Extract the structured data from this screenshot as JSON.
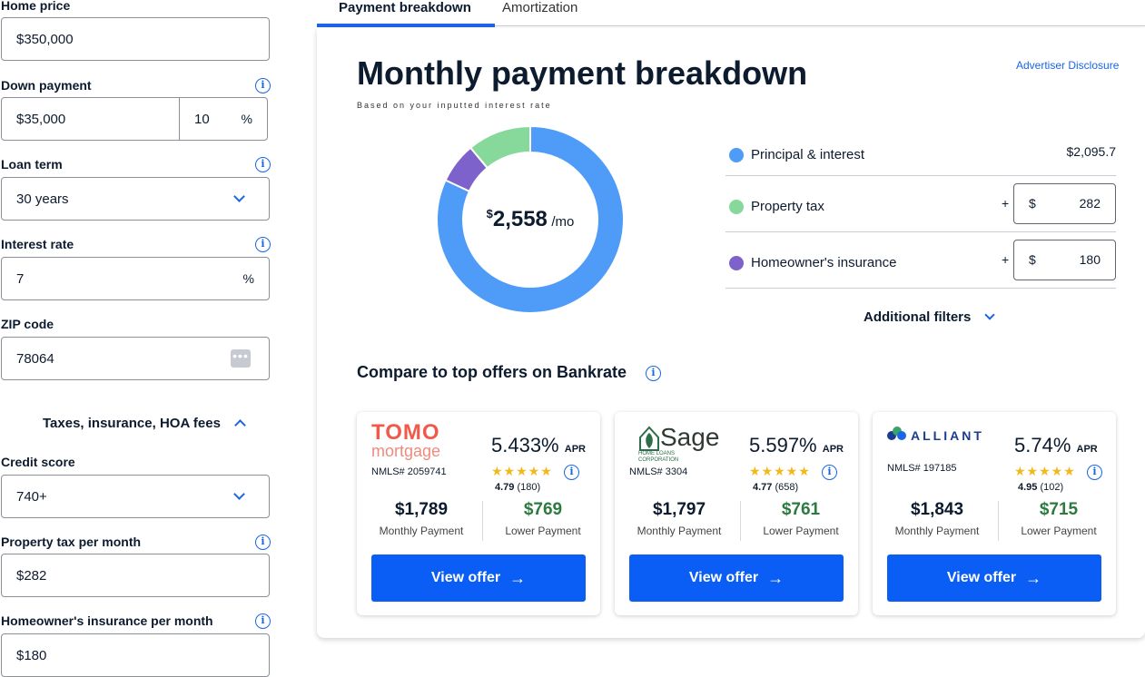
{
  "form": {
    "home_price_label": "Home price",
    "home_price_value": "$350,000",
    "down_payment_label": "Down payment",
    "down_payment_value": "$35,000",
    "down_payment_percent": "10",
    "percent_symbol": "%",
    "loan_term_label": "Loan term",
    "loan_term_value": "30 years",
    "interest_rate_label": "Interest rate",
    "interest_rate_value": "7",
    "zip_label": "ZIP code",
    "zip_value": "78064",
    "taxes_toggle_label": "Taxes, insurance, HOA fees",
    "credit_score_label": "Credit score",
    "credit_score_value": "740+",
    "property_tax_label": "Property tax per month",
    "property_tax_value": "$282",
    "insurance_label": "Homeowner's insurance per month",
    "insurance_value": "$180"
  },
  "tabs": [
    {
      "label": "Payment breakdown",
      "active": true
    },
    {
      "label": "Amortization",
      "active": false
    }
  ],
  "breakdown": {
    "title": "Monthly payment breakdown",
    "subtitle": "Based on your inputted interest rate",
    "advertiser_link": "Advertiser Disclosure",
    "total_currency": "$",
    "total_amount": "2,558",
    "total_period": "/mo",
    "donut": [
      {
        "name": "Principal & interest",
        "value": 2095.7,
        "color": "#4e9bf8"
      },
      {
        "name": "Homeowner's insurance",
        "value": 180,
        "color": "#7e62cc"
      },
      {
        "name": "Property tax",
        "value": 282,
        "color": "#86d99a"
      }
    ],
    "legend": {
      "principal_label": "Principal & interest",
      "principal_value": "$2,095.7",
      "tax_label": "Property tax",
      "tax_value": "282",
      "insurance_label": "Homeowner's insurance",
      "insurance_value": "180",
      "plus": "+",
      "dollar": "$"
    },
    "additional_filters": "Additional filters",
    "compare_title": "Compare to top offers on Bankrate"
  },
  "offers": [
    {
      "lender_line1": "TOMO",
      "lender_line2": "mortgage",
      "nmls": "NMLS# 2059741",
      "apr": "5.433%",
      "apr_label": "APR",
      "rating": "4.79",
      "reviews": "(180)",
      "monthly_payment": "$1,789",
      "monthly_label": "Monthly Payment",
      "lower_payment": "$769",
      "lower_label": "Lower Payment",
      "button": "View offer"
    },
    {
      "lender_line1": "Sage",
      "lender_line2": "HOME LOANS CORPORATION",
      "nmls": "NMLS# 3304",
      "apr": "5.597%",
      "apr_label": "APR",
      "rating": "4.77",
      "reviews": "(658)",
      "monthly_payment": "$1,797",
      "monthly_label": "Monthly Payment",
      "lower_payment": "$761",
      "lower_label": "Lower Payment",
      "button": "View offer"
    },
    {
      "lender_line1": "ALLIANT",
      "lender_line2": "",
      "nmls": "NMLS# 197185",
      "apr": "5.74%",
      "apr_label": "APR",
      "rating": "4.95",
      "reviews": "(102)",
      "monthly_payment": "$1,843",
      "monthly_label": "Monthly Payment",
      "lower_payment": "$715",
      "lower_label": "Lower Payment",
      "button": "View offer"
    }
  ],
  "colors": {
    "accent": "#1a66e6",
    "button": "#0b5ef5",
    "green": "#2c7a3f",
    "star": "#f0b91c"
  },
  "icons": [
    "info-icon",
    "chevron-down-icon",
    "chevron-up-icon",
    "more-dots-icon",
    "arrow-right-icon",
    "star-icon"
  ]
}
